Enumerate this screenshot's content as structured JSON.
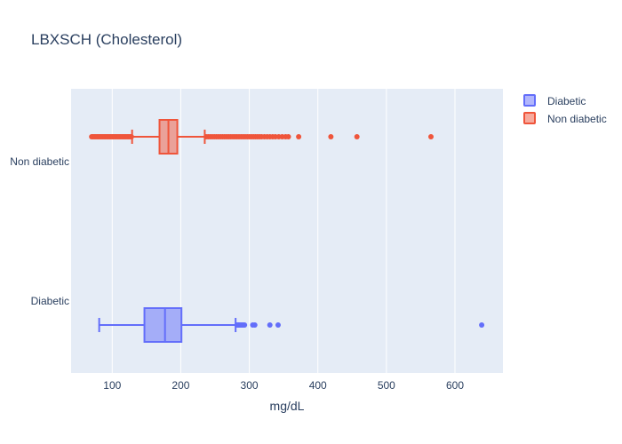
{
  "chart_data": {
    "type": "box",
    "title": "LBXSCH (Cholesterol)",
    "xlabel": "mg/dL",
    "ylabel": "",
    "xlim": [
      40,
      670
    ],
    "x_ticks": [
      100,
      200,
      300,
      400,
      500,
      600
    ],
    "categories": [
      "Non diabetic",
      "Diabetic"
    ],
    "grid": true,
    "legend_position": "top-right",
    "series": [
      {
        "name": "Diabetic",
        "color": "#636efa",
        "fill": "rgba(99,110,250,0.5)",
        "stats": {
          "lowerfence": 81,
          "q1": 147,
          "median": 177,
          "q3": 201,
          "upperfence": 280
        },
        "outliers": [
          282,
          284,
          285,
          287,
          289,
          291,
          293,
          305,
          308,
          330,
          342,
          639
        ]
      },
      {
        "name": "Non diabetic",
        "color": "#ef553b",
        "fill": "rgba(239,85,59,0.5)",
        "stats": {
          "lowerfence": 129,
          "q1": 169,
          "median": 182,
          "q3": 195,
          "upperfence": 235
        },
        "outliers": [
          70,
          72,
          74,
          76,
          78,
          80,
          82,
          84,
          86,
          88,
          90,
          92,
          94,
          96,
          98,
          100,
          102,
          104,
          106,
          108,
          110,
          112,
          114,
          116,
          118,
          120,
          122,
          124,
          126,
          128,
          237,
          240,
          243,
          246,
          249,
          252,
          255,
          258,
          261,
          264,
          267,
          270,
          273,
          276,
          279,
          282,
          285,
          288,
          291,
          294,
          297,
          300,
          303,
          306,
          309,
          312,
          315,
          318,
          322,
          326,
          330,
          334,
          338,
          343,
          348,
          353,
          357,
          372,
          419,
          457,
          565
        ]
      }
    ]
  }
}
